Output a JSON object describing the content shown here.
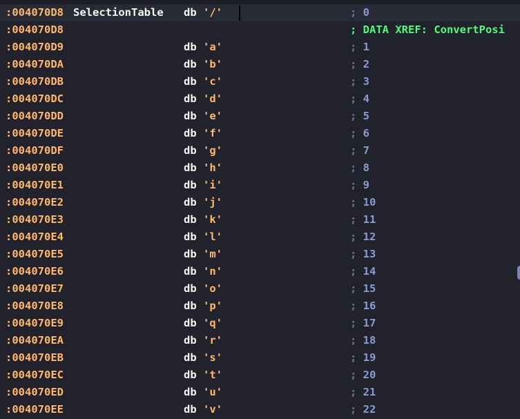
{
  "colors": {
    "background": "#21222c",
    "address": "#ffb86c",
    "comment": "#6272a4",
    "xref": "#50fa7b"
  },
  "rows": [
    {
      "addr": ":004070D8",
      "label": "SelectionTable",
      "mn": "db",
      "str": "'/'",
      "cmt": "0"
    },
    {
      "addr": ":004070D8",
      "xref": "; DATA XREF: ConvertPosi"
    },
    {
      "addr": ":004070D9",
      "mn": "db",
      "str": "'a'",
      "cmt": "1"
    },
    {
      "addr": ":004070DA",
      "mn": "db",
      "str": "'b'",
      "cmt": "2"
    },
    {
      "addr": ":004070DB",
      "mn": "db",
      "str": "'c'",
      "cmt": "3"
    },
    {
      "addr": ":004070DC",
      "mn": "db",
      "str": "'d'",
      "cmt": "4"
    },
    {
      "addr": ":004070DD",
      "mn": "db",
      "str": "'e'",
      "cmt": "5"
    },
    {
      "addr": ":004070DE",
      "mn": "db",
      "str": "'f'",
      "cmt": "6"
    },
    {
      "addr": ":004070DF",
      "mn": "db",
      "str": "'g'",
      "cmt": "7"
    },
    {
      "addr": ":004070E0",
      "mn": "db",
      "str": "'h'",
      "cmt": "8"
    },
    {
      "addr": ":004070E1",
      "mn": "db",
      "str": "'i'",
      "cmt": "9"
    },
    {
      "addr": ":004070E2",
      "mn": "db",
      "str": "'j'",
      "cmt": "10"
    },
    {
      "addr": ":004070E3",
      "mn": "db",
      "str": "'k'",
      "cmt": "11"
    },
    {
      "addr": ":004070E4",
      "mn": "db",
      "str": "'l'",
      "cmt": "12"
    },
    {
      "addr": ":004070E5",
      "mn": "db",
      "str": "'m'",
      "cmt": "13"
    },
    {
      "addr": ":004070E6",
      "mn": "db",
      "str": "'n'",
      "cmt": "14"
    },
    {
      "addr": ":004070E7",
      "mn": "db",
      "str": "'o'",
      "cmt": "15"
    },
    {
      "addr": ":004070E8",
      "mn": "db",
      "str": "'p'",
      "cmt": "16"
    },
    {
      "addr": ":004070E9",
      "mn": "db",
      "str": "'q'",
      "cmt": "17"
    },
    {
      "addr": ":004070EA",
      "mn": "db",
      "str": "'r'",
      "cmt": "18"
    },
    {
      "addr": ":004070EB",
      "mn": "db",
      "str": "'s'",
      "cmt": "19"
    },
    {
      "addr": ":004070EC",
      "mn": "db",
      "str": "'t'",
      "cmt": "20"
    },
    {
      "addr": ":004070ED",
      "mn": "db",
      "str": "'u'",
      "cmt": "21"
    },
    {
      "addr": ":004070EE",
      "mn": "db",
      "str": "'v'",
      "cmt": "22"
    }
  ]
}
